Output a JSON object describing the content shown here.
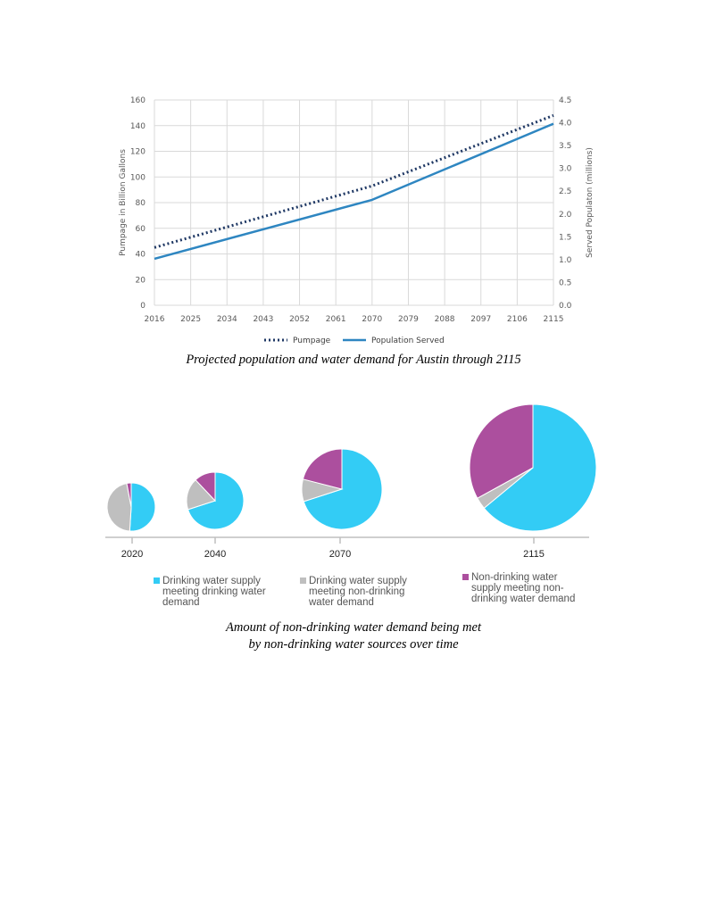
{
  "chart_data": [
    {
      "type": "line",
      "title": "",
      "x": [
        2016,
        2025,
        2034,
        2043,
        2052,
        2061,
        2070,
        2079,
        2088,
        2097,
        2106,
        2115
      ],
      "xticks": [
        "2016",
        "2025",
        "2034",
        "2043",
        "2052",
        "2061",
        "2070",
        "2079",
        "2088",
        "2097",
        "2106",
        "2115"
      ],
      "ylabel": "Pumpage in Billion Gallons",
      "y2label": "Served Populaton (millions)",
      "ylim": [
        0,
        160
      ],
      "y2lim": [
        0,
        4.5
      ],
      "yticks": [
        "0",
        "20",
        "40",
        "60",
        "80",
        "100",
        "120",
        "140",
        "160"
      ],
      "y2ticks": [
        "0.0",
        "0.5",
        "1.0",
        "1.5",
        "2.0",
        "2.5",
        "3.0",
        "3.5",
        "4.0",
        "4.5"
      ],
      "grid": true,
      "legend_position": "bottom",
      "series": [
        {
          "name": "Pumpage",
          "axis": "left",
          "style": "dotted",
          "color": "#1f3864",
          "points": [
            [
              2016,
              45
            ],
            [
              2070,
              93
            ],
            [
              2115,
              148
            ]
          ]
        },
        {
          "name": "Population Served",
          "axis": "right",
          "style": "solid",
          "color": "#2e86c1",
          "points": [
            [
              2016,
              1.02
            ],
            [
              2070,
              2.31
            ],
            [
              2115,
              3.98
            ]
          ]
        }
      ]
    },
    {
      "type": "pie",
      "title": "",
      "pies": [
        {
          "label": "2020",
          "values": [
            51,
            46,
            3
          ]
        },
        {
          "label": "2040",
          "values": [
            70,
            18,
            12
          ]
        },
        {
          "label": "2070",
          "values": [
            70,
            9,
            21
          ]
        },
        {
          "label": "2115",
          "values": [
            64,
            3,
            33
          ]
        }
      ],
      "legend": [
        {
          "name": "Drinking water supply meeting drinking water demand",
          "color": "#33ccf5"
        },
        {
          "name": "Drinking water supply meeting non-drinking water demand",
          "color": "#bfbfbf"
        },
        {
          "name": "Non-drinking water supply meeting non-drinking water demand",
          "color": "#ac4f9e"
        }
      ]
    }
  ],
  "captions": {
    "line": "Projected population and water demand for Austin through 2115",
    "pie_line1": "Amount of non-drinking water demand being met",
    "pie_line2": "by non-drinking water sources over time"
  }
}
